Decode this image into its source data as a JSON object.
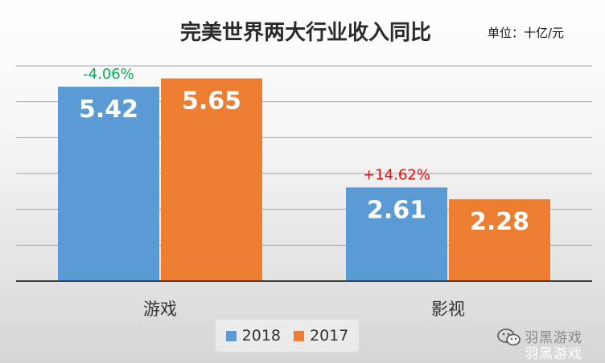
{
  "title": "完美世界两大行业收入同比",
  "unit_label": "单位：十亿/元",
  "watermark": {
    "icon": "wechat-icon",
    "line1": "羽黑游戏",
    "line2": "羽黑游戏"
  },
  "colors": {
    "series_2018": "#5b9bd5",
    "series_2017": "#ed7d31",
    "change_negative": "#00b050",
    "change_positive": "#ff0000",
    "gridline": "#a6a6a6",
    "axis": "#404040"
  },
  "chart_data": {
    "type": "bar",
    "categories": [
      "游戏",
      "影视"
    ],
    "series": [
      {
        "name": "2018",
        "values": [
          5.42,
          2.61
        ]
      },
      {
        "name": "2017",
        "values": [
          5.65,
          2.28
        ]
      }
    ],
    "annotations": [
      "-4.06%",
      "+14.62%"
    ],
    "title": "完美世界两大行业收入同比",
    "xlabel": "",
    "ylabel": "",
    "ylim": [
      0,
      6
    ],
    "grid": true,
    "legend": "bottom",
    "data_labels": true
  }
}
